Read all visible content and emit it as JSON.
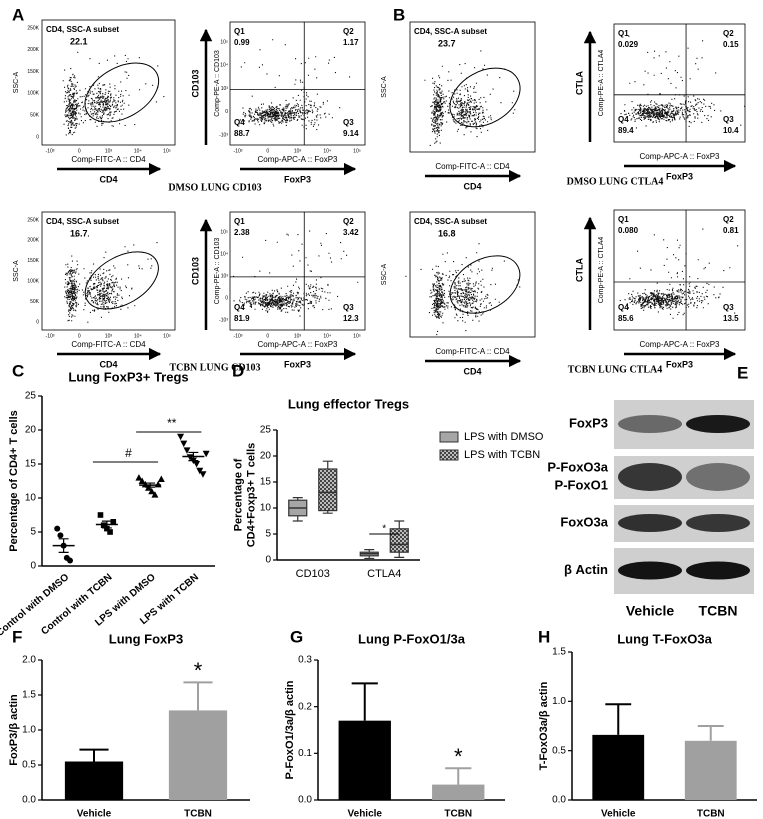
{
  "flow": [
    {
      "label": "A",
      "rows": [
        {
          "gate": {
            "title": "CD4, SSC-A subset",
            "value": "22.1",
            "y_label": "SSC-A",
            "x_label": "Comp-FITC-A :: CD4",
            "arrow_label": "CD4",
            "yticks": [
              "250K",
              "200K",
              "150K",
              "100K",
              "50K",
              "0"
            ],
            "xticks": [
              "-10³",
              "0",
              "10³",
              "10⁴",
              "10⁵"
            ]
          },
          "quad": {
            "quadrants": [
              {
                "name": "Q1",
                "value": "0.99"
              },
              {
                "name": "Q2",
                "value": "1.17"
              },
              {
                "name": "Q4",
                "value": "88.7"
              },
              {
                "name": "Q3",
                "value": "9.14"
              }
            ],
            "y_label": "Comp-PE-A :: CD103",
            "x_label": "Comp-APC-A :: FoxP3",
            "y_arrow_label": "CD103",
            "arrow_label": "FoxP3",
            "yticks": [
              "10⁵",
              "10⁴",
              "10³",
              "0",
              "-10³"
            ],
            "xticks": [
              "-10³",
              "0",
              "10³",
              "10⁴",
              "10⁵"
            ]
          },
          "caption": "DMSO LUNG CD103"
        },
        {
          "gate": {
            "title": "CD4, SSC-A subset",
            "value": "16.7",
            "y_label": "SSC-A",
            "x_label": "Comp-FITC-A :: CD4",
            "arrow_label": "CD4",
            "yticks": [
              "250K",
              "200K",
              "150K",
              "100K",
              "50K",
              "0"
            ],
            "xticks": [
              "-10³",
              "0",
              "10³",
              "10⁴",
              "10⁵"
            ]
          },
          "quad": {
            "quadrants": [
              {
                "name": "Q1",
                "value": "2.38"
              },
              {
                "name": "Q2",
                "value": "3.42"
              },
              {
                "name": "Q4",
                "value": "81.9"
              },
              {
                "name": "Q3",
                "value": "12.3"
              }
            ],
            "y_label": "Comp-PE-A :: CD103",
            "x_label": "Comp-APC-A :: FoxP3",
            "y_arrow_label": "CD103",
            "arrow_label": "FoxP3",
            "yticks": [
              "10⁵",
              "10⁴",
              "10³",
              "0",
              "-10³"
            ],
            "xticks": [
              "-10³",
              "0",
              "10³",
              "10⁴",
              "10⁵"
            ]
          },
          "caption": "TCBN LUNG CD103"
        }
      ]
    },
    {
      "label": "B",
      "rows": [
        {
          "gate": {
            "title": "CD4, SSC-A subset",
            "value": "23.7",
            "y_label": "SSC-A",
            "x_label": "Comp-FITC-A :: CD4",
            "arrow_label": "CD4"
          },
          "quad": {
            "quadrants": [
              {
                "name": "Q1",
                "value": "0.029"
              },
              {
                "name": "Q2",
                "value": "0.15"
              },
              {
                "name": "Q4",
                "value": "89.4"
              },
              {
                "name": "Q3",
                "value": "10.4"
              }
            ],
            "y_label": "Comp-PE-A :: CTLA4",
            "x_label": "Comp-APC-A :: FoxP3",
            "y_arrow_label": "CTLA",
            "arrow_label": "FoxP3"
          },
          "caption": "DMSO LUNG CTLA4"
        },
        {
          "gate": {
            "title": "CD4, SSC-A subset",
            "value": "16.8",
            "y_label": "SSC-A",
            "x_label": "Comp-FITC-A :: CD4",
            "arrow_label": "CD4"
          },
          "quad": {
            "quadrants": [
              {
                "name": "Q1",
                "value": "0.080"
              },
              {
                "name": "Q2",
                "value": "0.81"
              },
              {
                "name": "Q4",
                "value": "85.6"
              },
              {
                "name": "Q3",
                "value": "13.5"
              }
            ],
            "y_label": "Comp-PE-A :: CTLA4",
            "x_label": "Comp-APC-A :: FoxP3",
            "y_arrow_label": "CTLA",
            "arrow_label": "FoxP3"
          },
          "caption": "TCBN LUNG CTLA4"
        }
      ]
    }
  ],
  "blot": {
    "label": "E",
    "rows": [
      [
        "FoxP3"
      ],
      [
        "P-FoxO3a",
        "P-FoxO1"
      ],
      [
        "FoxO3a"
      ],
      [
        "β Actin"
      ]
    ],
    "lanes": [
      "Vehicle",
      "TCBN"
    ]
  },
  "chart_data": [
    {
      "type": "dot",
      "label": "C",
      "title": "Lung FoxP3+ Tregs",
      "y_label": "Percentage of CD4+ T cells",
      "categories": [
        "Control with DMSO",
        "Control with TCBN",
        "LPS with DMSO",
        "LPS with TCBN"
      ],
      "values": [
        [
          5.5,
          4.5,
          3,
          1.2,
          0.8
        ],
        [
          7.5,
          6,
          5.5,
          5,
          6.5
        ],
        [
          13,
          12.5,
          12,
          11.5,
          11,
          10.5,
          12,
          12.8
        ],
        [
          19,
          18,
          17,
          16,
          15.5,
          15,
          14,
          13.5,
          16.5
        ]
      ],
      "means": [
        3,
        6.1,
        11.9,
        16.1
      ],
      "errors": [
        1,
        0.5,
        0.3,
        0.6
      ],
      "markers": [
        "circle",
        "square",
        "triangle",
        "triangle-down"
      ],
      "color": "#000000",
      "annotations": [
        "#",
        "**"
      ],
      "ylim": [
        0,
        25
      ],
      "yticks": [
        0,
        5,
        10,
        15,
        20,
        25
      ]
    },
    {
      "type": "box",
      "label": "D",
      "title": "Lung effector Tregs",
      "y_label": [
        "Percentage of",
        "CD4+Foxp3+ T cells"
      ],
      "categories": [
        "CD103",
        "CTLA4"
      ],
      "series": [
        {
          "name": "LPS with DMSO",
          "color": "#a6a6a6",
          "pattern": false,
          "values": [
            [
              7.5,
              8.5,
              10,
              11.5,
              12
            ],
            [
              0.3,
              0.8,
              1.2,
              1.5,
              2
            ]
          ]
        },
        {
          "name": "LPS with TCBN",
          "color": "#6e6e6e",
          "pattern": true,
          "values": [
            [
              9,
              9.5,
              13,
              17.5,
              19
            ],
            [
              0.5,
              1.5,
              3,
              6,
              7.5
            ]
          ]
        }
      ],
      "annotations": [
        "*"
      ],
      "legend": "top-right",
      "ylim": [
        0,
        25
      ],
      "yticks": [
        0,
        5,
        10,
        15,
        20,
        25
      ]
    },
    {
      "type": "bar",
      "label": "F",
      "title": "Lung FoxP3",
      "y_label": "FoxP3/β actin",
      "categories": [
        "Vehicle",
        "TCBN"
      ],
      "values": [
        0.55,
        1.28
      ],
      "errors": [
        0.17,
        0.4
      ],
      "colors": [
        "#000000",
        "#a0a0a0"
      ],
      "value_annotations": [
        null,
        "*"
      ],
      "ylim": [
        0,
        2
      ],
      "yticks": [
        {
          "value": 0,
          "label": "0.0"
        },
        0.5,
        {
          "value": 1,
          "label": "1.0"
        },
        1.5,
        {
          "value": 2,
          "label": "2.0"
        }
      ]
    },
    {
      "type": "bar",
      "label": "G",
      "title": "Lung P-FoxO1/3a",
      "y_label": "P-FoxO1/3a/β actin",
      "categories": [
        "Vehicle",
        "TCBN"
      ],
      "values": [
        0.17,
        0.033
      ],
      "errors": [
        0.08,
        0.035
      ],
      "colors": [
        "#000000",
        "#a0a0a0"
      ],
      "value_annotations": [
        null,
        "*"
      ],
      "ylim": [
        0,
        0.3
      ],
      "yticks": [
        {
          "value": 0,
          "label": "0.0"
        },
        0.1,
        0.2,
        0.3
      ]
    },
    {
      "type": "bar",
      "label": "H",
      "title": "Lung T-FoxO3a",
      "y_label": "T-FoxO3a/β actin",
      "categories": [
        "Vehicle",
        "TCBN"
      ],
      "values": [
        0.66,
        0.6
      ],
      "errors": [
        0.31,
        0.15
      ],
      "colors": [
        "#000000",
        "#a0a0a0"
      ],
      "ylim": [
        0,
        1.5
      ],
      "yticks": [
        {
          "value": 0,
          "label": "0.0"
        },
        0.5,
        {
          "value": 1,
          "label": "1.0"
        },
        1.5
      ]
    }
  ]
}
